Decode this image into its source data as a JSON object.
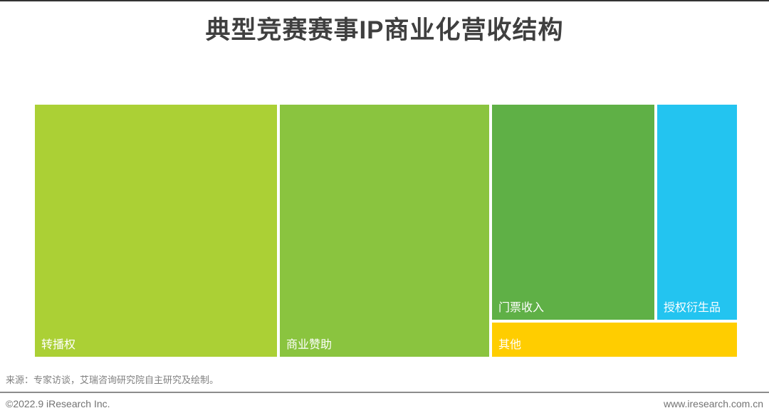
{
  "title": "典型竞赛赛事IP商业化营收结构",
  "chart_data": {
    "type": "treemap",
    "title": "典型竞赛赛事IP商业化营收结构",
    "legend": "none",
    "items": [
      {
        "label": "转播权",
        "estimated_share_pct": 35,
        "color": "#abd035"
      },
      {
        "label": "商业赞助",
        "estimated_share_pct": 30,
        "color": "#8ac43f"
      },
      {
        "label": "门票收入",
        "estimated_share_pct": 20,
        "color": "#5fb046"
      },
      {
        "label": "授权衍生品",
        "estimated_share_pct": 10,
        "color": "#23c4f0"
      },
      {
        "label": "其他",
        "estimated_share_pct": 5,
        "color": "#ffcd00"
      }
    ]
  },
  "source_note": "来源：专家访谈，艾瑞咨询研究院自主研究及绘制。",
  "footer": {
    "left": "©2022.9 iResearch Inc.",
    "right": "www.iresearch.com.cn"
  },
  "colors": {
    "title_text": "#3f3f3f",
    "block_label_text": "#ffffff",
    "note_text": "#808080",
    "footer_text": "#737373",
    "divider": "#8c8c8c",
    "top_border": "#333333",
    "background": "#ffffff"
  }
}
